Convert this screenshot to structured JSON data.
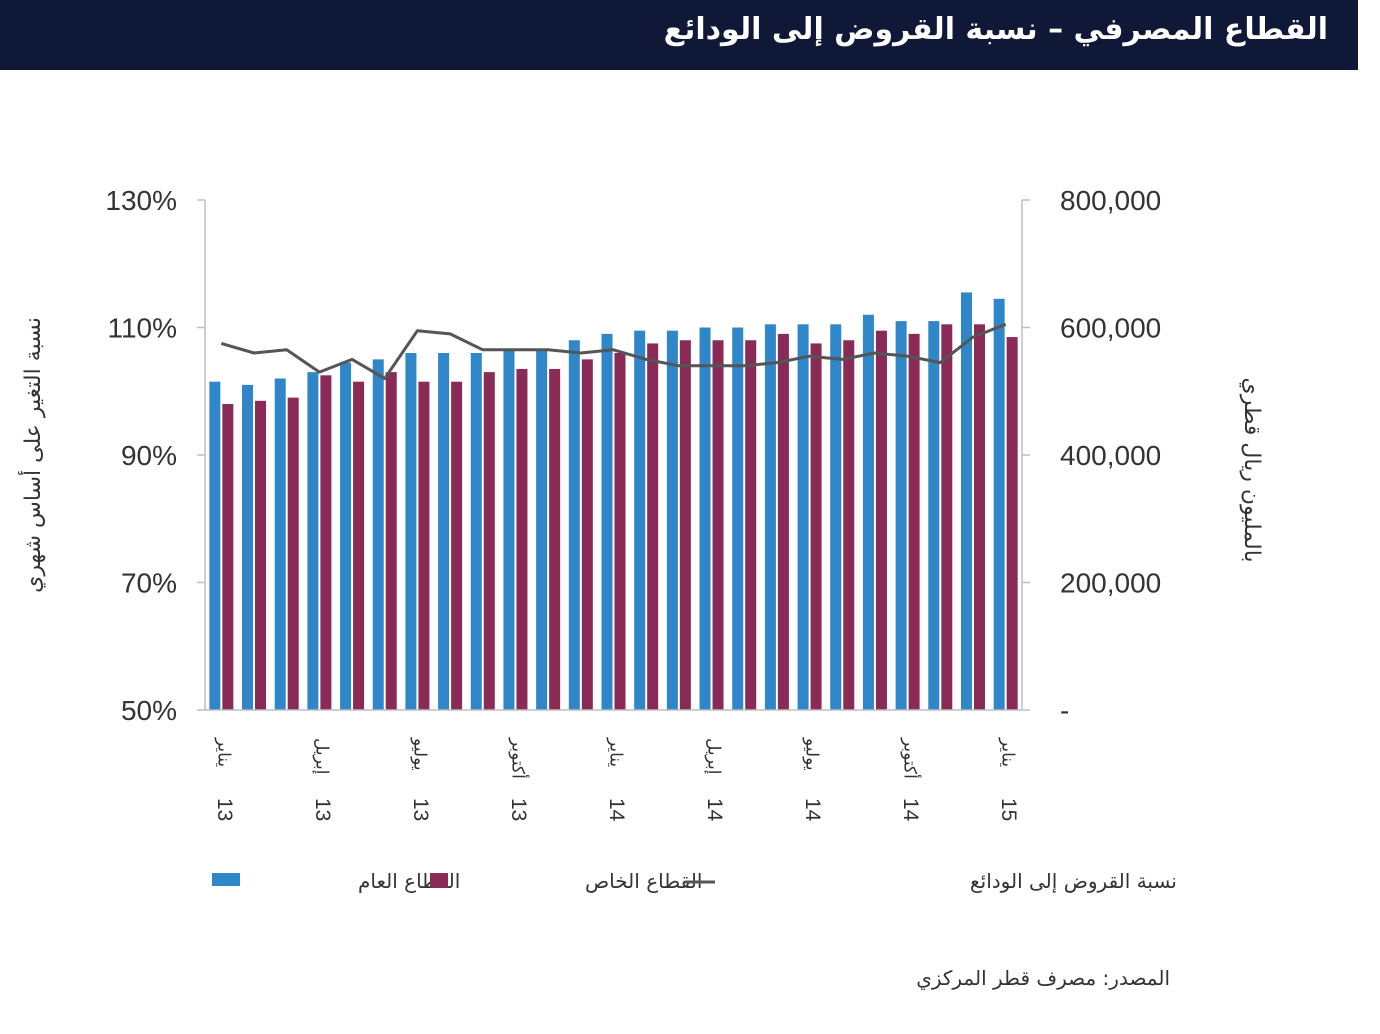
{
  "header": {
    "title": "القطاع المصرفي – نسبة القروض إلى الودائع"
  },
  "source": "المصدر: مصرف قطر المركزي",
  "chart_data": {
    "type": "bar",
    "categories": [
      "يناير 13",
      "",
      "",
      "إبريل 13",
      "",
      "",
      "يوليو 13",
      "",
      "",
      "أكتوبر 13",
      "",
      "",
      "يناير 14",
      "",
      "",
      "إبريل 14",
      "",
      "",
      "يوليو 14",
      "",
      "",
      "أكتوبر 14",
      "",
      "",
      "يناير 15"
    ],
    "series": [
      {
        "name": "القطاع العام",
        "kind": "bar",
        "axis": "right",
        "color": "#2f86c8",
        "values": [
          515000,
          510000,
          520000,
          530000,
          545000,
          550000,
          560000,
          560000,
          560000,
          565000,
          565000,
          580000,
          590000,
          595000,
          595000,
          600000,
          600000,
          605000,
          605000,
          605000,
          620000,
          610000,
          610000,
          655000,
          645000
        ]
      },
      {
        "name": "القطاع الخاص",
        "kind": "bar",
        "axis": "right",
        "color": "#8a2a57",
        "values": [
          480000,
          485000,
          490000,
          525000,
          515000,
          530000,
          515000,
          515000,
          530000,
          535000,
          535000,
          550000,
          560000,
          575000,
          580000,
          580000,
          580000,
          590000,
          575000,
          580000,
          595000,
          590000,
          605000,
          605000,
          585000
        ]
      },
      {
        "name": "نسبة القروض إلى الودائع",
        "kind": "line",
        "axis": "left",
        "color": "#555555",
        "values": [
          107.5,
          106,
          106.5,
          103,
          105,
          102,
          109.5,
          109,
          106.5,
          106.5,
          106.5,
          106,
          106.5,
          105,
          104,
          104,
          104,
          104.5,
          105.5,
          105,
          106,
          105.5,
          104.5,
          108.5,
          110.5
        ]
      }
    ],
    "y_left": {
      "ticks": [
        "130%",
        "110%",
        "90%",
        "70%",
        "50%"
      ],
      "ylim": [
        50,
        130
      ],
      "ylabel": "نسبة التغير على أساس شهري"
    },
    "y_right": {
      "ticks": [
        "800,000",
        "600,000",
        "400,000",
        "200,000",
        "-"
      ],
      "ylim": [
        0,
        800000
      ],
      "ylabel": "بالمليون ريال قطري"
    },
    "legend": {
      "placement": "bottom"
    }
  }
}
